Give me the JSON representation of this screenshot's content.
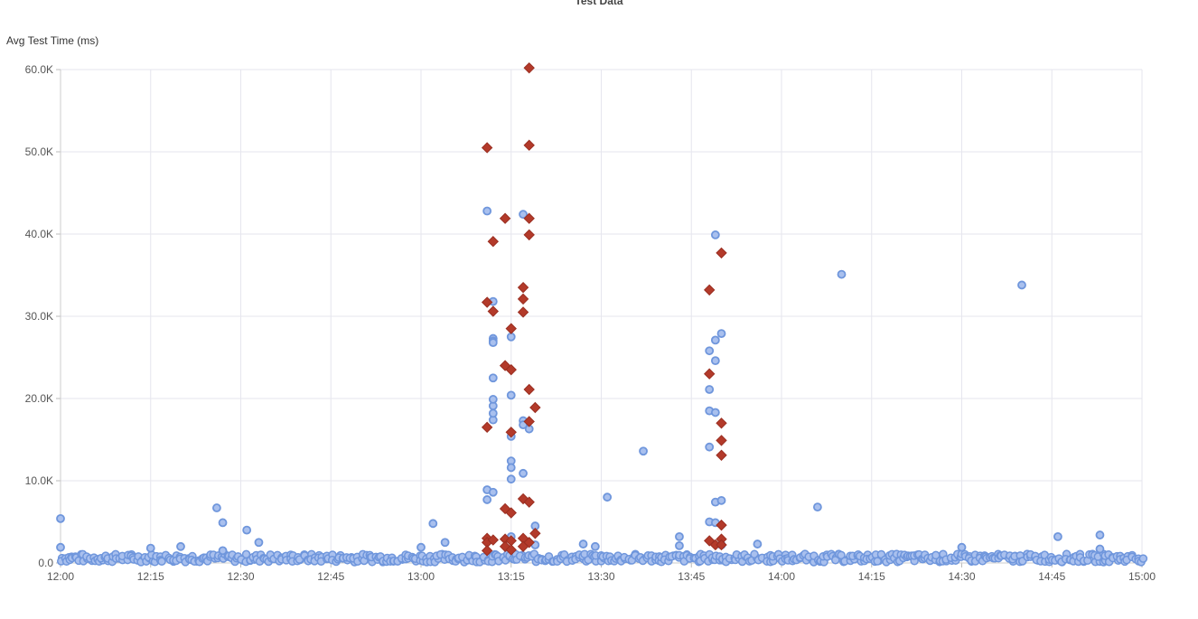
{
  "chart_data": {
    "type": "scatter",
    "title": "Test Data",
    "ylabel": "Avg Test Time (ms)",
    "xlabel": "",
    "grid": true,
    "ylim": [
      0,
      60000
    ],
    "y_ticks": [
      "0.0",
      "10.0K",
      "20.0K",
      "30.0K",
      "40.0K",
      "50.0K",
      "60.0K"
    ],
    "x_ticks": [
      "12:00",
      "12:15",
      "12:30",
      "12:45",
      "13:00",
      "13:15",
      "13:30",
      "13:45",
      "14:00",
      "14:15",
      "14:30",
      "14:45",
      "15:00"
    ],
    "xlim": [
      "12:00",
      "15:00"
    ],
    "series_colors": {
      "circles": "#6f96dc",
      "diamonds": "#b33a2a"
    },
    "series": [
      {
        "marker": "circle",
        "points": [
          [
            "12:00",
            5400
          ],
          [
            "12:00",
            1900
          ],
          [
            "12:15",
            1800
          ],
          [
            "12:20",
            2000
          ],
          [
            "12:26",
            6700
          ],
          [
            "12:27",
            4900
          ],
          [
            "12:27",
            1500
          ],
          [
            "12:31",
            4000
          ],
          [
            "12:33",
            2500
          ],
          [
            "13:00",
            1900
          ],
          [
            "13:02",
            4800
          ],
          [
            "13:04",
            2500
          ],
          [
            "13:11",
            42800
          ],
          [
            "13:11",
            8900
          ],
          [
            "13:11",
            7700
          ],
          [
            "13:12",
            31800
          ],
          [
            "13:12",
            27300
          ],
          [
            "13:12",
            27000
          ],
          [
            "13:12",
            26800
          ],
          [
            "13:12",
            22500
          ],
          [
            "13:12",
            17400
          ],
          [
            "13:12",
            19100
          ],
          [
            "13:12",
            18200
          ],
          [
            "13:12",
            19900
          ],
          [
            "13:12",
            8600
          ],
          [
            "13:15",
            27500
          ],
          [
            "13:15",
            20400
          ],
          [
            "13:15",
            15400
          ],
          [
            "13:15",
            12400
          ],
          [
            "13:15",
            11600
          ],
          [
            "13:15",
            10200
          ],
          [
            "13:15",
            3200
          ],
          [
            "13:17",
            42400
          ],
          [
            "13:17",
            17300
          ],
          [
            "13:17",
            16800
          ],
          [
            "13:17",
            10900
          ],
          [
            "13:18",
            16300
          ],
          [
            "13:19",
            4500
          ],
          [
            "13:19",
            2200
          ],
          [
            "13:27",
            2300
          ],
          [
            "13:29",
            2000
          ],
          [
            "13:31",
            8000
          ],
          [
            "13:37",
            13600
          ],
          [
            "13:43",
            3200
          ],
          [
            "13:43",
            2100
          ],
          [
            "13:48",
            25800
          ],
          [
            "13:48",
            21100
          ],
          [
            "13:48",
            14100
          ],
          [
            "13:48",
            18500
          ],
          [
            "13:48",
            5000
          ],
          [
            "13:49",
            39900
          ],
          [
            "13:49",
            27100
          ],
          [
            "13:49",
            24600
          ],
          [
            "13:49",
            18300
          ],
          [
            "13:49",
            7400
          ],
          [
            "13:49",
            4900
          ],
          [
            "13:50",
            27900
          ],
          [
            "13:50",
            7600
          ],
          [
            "13:50",
            2200
          ],
          [
            "13:56",
            2300
          ],
          [
            "14:06",
            6800
          ],
          [
            "14:10",
            35100
          ],
          [
            "14:30",
            1900
          ],
          [
            "14:40",
            33800
          ],
          [
            "14:46",
            3200
          ],
          [
            "14:53",
            3400
          ],
          [
            "14:53",
            1700
          ]
        ]
      },
      {
        "marker": "diamond",
        "points": [
          [
            "13:11",
            50500
          ],
          [
            "13:11",
            31700
          ],
          [
            "13:11",
            16500
          ],
          [
            "13:11",
            3000
          ],
          [
            "13:11",
            2500
          ],
          [
            "13:11",
            1500
          ],
          [
            "13:12",
            39100
          ],
          [
            "13:12",
            30600
          ],
          [
            "13:12",
            2800
          ],
          [
            "13:14",
            41900
          ],
          [
            "13:14",
            24000
          ],
          [
            "13:14",
            6600
          ],
          [
            "13:14",
            2900
          ],
          [
            "13:14",
            2000
          ],
          [
            "13:15",
            28500
          ],
          [
            "13:15",
            23500
          ],
          [
            "13:15",
            15900
          ],
          [
            "13:15",
            6100
          ],
          [
            "13:15",
            2700
          ],
          [
            "13:15",
            1600
          ],
          [
            "13:17",
            33500
          ],
          [
            "13:17",
            32100
          ],
          [
            "13:17",
            30500
          ],
          [
            "13:17",
            7800
          ],
          [
            "13:17",
            3000
          ],
          [
            "13:17",
            2000
          ],
          [
            "13:18",
            60200
          ],
          [
            "13:18",
            50800
          ],
          [
            "13:18",
            41900
          ],
          [
            "13:18",
            39900
          ],
          [
            "13:18",
            21100
          ],
          [
            "13:18",
            17200
          ],
          [
            "13:18",
            7400
          ],
          [
            "13:18",
            2500
          ],
          [
            "13:19",
            18900
          ],
          [
            "13:19",
            3600
          ],
          [
            "13:48",
            33200
          ],
          [
            "13:48",
            23000
          ],
          [
            "13:48",
            2700
          ],
          [
            "13:49",
            2200
          ],
          [
            "13:50",
            37700
          ],
          [
            "13:50",
            17000
          ],
          [
            "13:50",
            14900
          ],
          [
            "13:50",
            13100
          ],
          [
            "13:50",
            4600
          ],
          [
            "13:50",
            2900
          ],
          [
            "13:50",
            2200
          ]
        ]
      }
    ]
  }
}
